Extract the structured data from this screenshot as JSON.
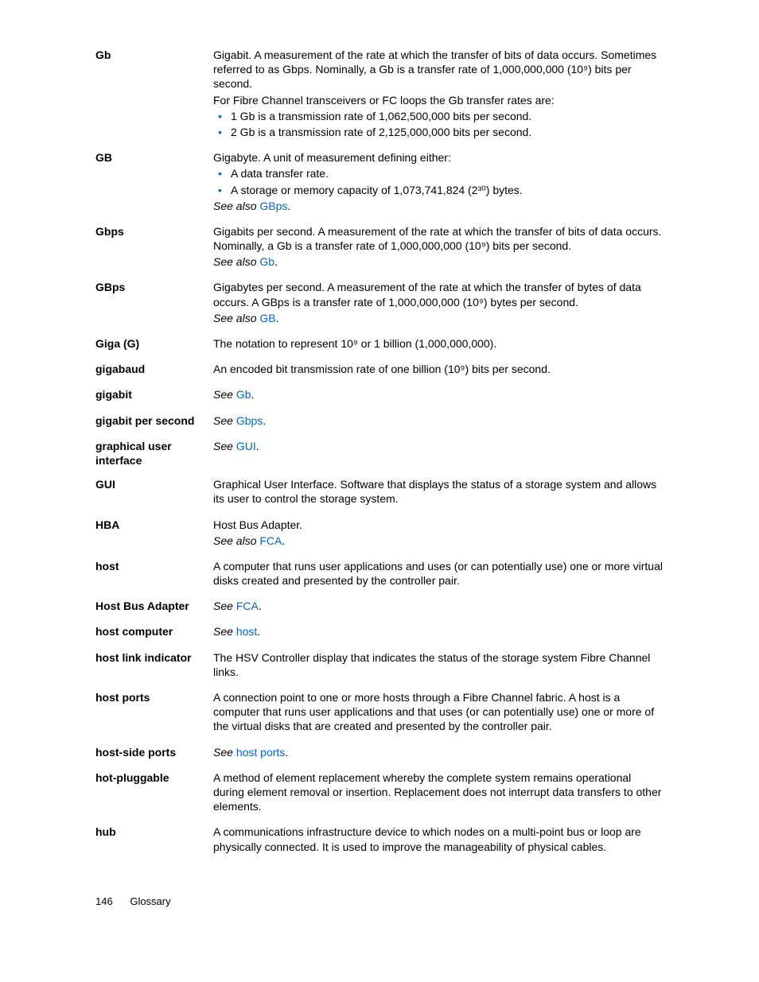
{
  "page": {
    "number": "146",
    "section": "Glossary"
  },
  "colors": {
    "text": "#000000",
    "link": "#0066cc",
    "bullet": "#0066cc",
    "background": "#ffffff"
  },
  "typography": {
    "body_fontsize_pt": 11,
    "term_weight": "bold",
    "line_height": 1.3
  },
  "entries": [
    {
      "term": "Gb",
      "paragraphs": [
        "Gigabit. A measurement of the rate at which the transfer of bits of data occurs. Sometimes referred to as Gbps. Nominally, a Gb is a transfer rate of 1,000,000,000 (10⁹) bits per second.",
        "For Fibre Channel transceivers or FC loops the Gb transfer rates are:"
      ],
      "bullets": [
        "1 Gb is a transmission rate of 1,062,500,000 bits per second.",
        "2 Gb is a transmission rate of 2,125,000,000 bits per second."
      ]
    },
    {
      "term": "GB",
      "paragraphs": [
        "Gigabyte. A unit of measurement defining either:"
      ],
      "bullets": [
        "A data transfer rate.",
        "A storage or memory capacity of 1,073,741,824 (2³⁰) bytes."
      ],
      "see_also_prefix": "See also ",
      "see_also_link": "GBps",
      "see_also_suffix": "."
    },
    {
      "term": "Gbps",
      "paragraphs": [
        "Gigabits per second. A measurement of the rate at which the transfer of bits of data occurs. Nominally, a Gb is a transfer rate of 1,000,000,000 (10⁹) bits per second."
      ],
      "see_also_prefix": "See also ",
      "see_also_link": "Gb",
      "see_also_suffix": "."
    },
    {
      "term": "GBps",
      "paragraphs": [
        "Gigabytes per second. A measurement of the rate at which the transfer of bytes of data occurs. A GBps is a transfer rate of 1,000,000,000 (10⁹) bytes per second."
      ],
      "see_also_prefix": "See also ",
      "see_also_link": "GB",
      "see_also_suffix": "."
    },
    {
      "term": "Giga (G)",
      "paragraphs": [
        "The notation to represent 10⁹ or 1 billion (1,000,000,000)."
      ]
    },
    {
      "term": "gigabaud",
      "paragraphs": [
        "An encoded bit transmission rate of one billion (10⁹) bits per second."
      ]
    },
    {
      "term": "gigabit",
      "see_prefix": "See ",
      "see_link": "Gb",
      "see_suffix": "."
    },
    {
      "term": "gigabit per second",
      "see_prefix": "See ",
      "see_link": "Gbps",
      "see_suffix": "."
    },
    {
      "term": "graphical user interface",
      "see_prefix": "See ",
      "see_link": "GUI",
      "see_suffix": "."
    },
    {
      "term": "GUI",
      "paragraphs": [
        "Graphical User Interface. Software that displays the status of a storage system and allows its user to control the storage system."
      ]
    },
    {
      "term": "HBA",
      "paragraphs": [
        "Host Bus Adapter."
      ],
      "see_also_prefix": "See also ",
      "see_also_link": "FCA",
      "see_also_suffix": "."
    },
    {
      "term": "host",
      "paragraphs": [
        "A computer that runs user applications and uses (or can potentially use) one or more virtual disks created and presented by the controller pair."
      ]
    },
    {
      "term": "Host Bus Adapter",
      "see_prefix": "See ",
      "see_link": "FCA",
      "see_suffix": "."
    },
    {
      "term": "host computer",
      "see_prefix": "See ",
      "see_link": "host",
      "see_suffix": "."
    },
    {
      "term": "host link indicator",
      "paragraphs": [
        "The HSV Controller display that indicates the status of the storage system Fibre Channel links."
      ]
    },
    {
      "term": "host ports",
      "paragraphs": [
        "A connection point to one or more hosts through a Fibre Channel fabric. A host is a computer that runs user applications and that uses (or can potentially use) one or more of the virtual disks that are created and presented by the controller pair."
      ]
    },
    {
      "term": "host-side ports",
      "see_prefix": "See ",
      "see_link": "host ports",
      "see_suffix": "."
    },
    {
      "term": "hot-pluggable",
      "paragraphs": [
        "A method of element replacement whereby the complete system remains operational during element removal or insertion. Replacement does not interrupt data transfers to other elements."
      ]
    },
    {
      "term": "hub",
      "paragraphs": [
        "A communications infrastructure device to which nodes on a multi-point bus or loop are physically connected. It is used to improve the manageability of physical cables."
      ]
    }
  ]
}
